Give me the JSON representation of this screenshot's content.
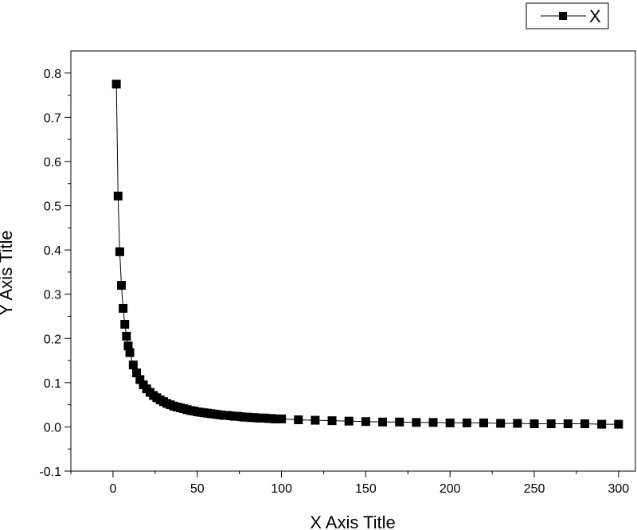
{
  "chart_data": {
    "type": "line",
    "title": "",
    "xlabel": "X Axis Title",
    "ylabel": "Y Axis Title",
    "xlim": [
      -25,
      310
    ],
    "ylim": [
      -0.1,
      0.85
    ],
    "xticks": [
      0,
      50,
      100,
      150,
      200,
      250,
      300
    ],
    "xtick_labels": [
      "0",
      "50",
      "100",
      "150",
      "200",
      "250",
      "300"
    ],
    "yticks": [
      -0.1,
      0.0,
      0.1,
      0.2,
      0.3,
      0.4,
      0.5,
      0.6,
      0.7,
      0.8
    ],
    "ytick_labels": [
      "-0.1",
      "0.0",
      "0.1",
      "0.2",
      "0.3",
      "0.4",
      "0.5",
      "0.6",
      "0.7",
      "0.8"
    ],
    "grid": false,
    "legend_position": "top-right",
    "colors": {
      "series": "#000000"
    },
    "series": [
      {
        "name": "X",
        "marker": "square",
        "x": [
          2,
          3,
          4,
          5,
          6,
          7,
          8,
          9,
          10,
          12,
          14,
          16,
          18,
          20,
          22,
          24,
          26,
          28,
          30,
          32,
          34,
          36,
          38,
          40,
          42,
          44,
          46,
          48,
          50,
          52,
          54,
          56,
          58,
          60,
          62,
          64,
          66,
          68,
          70,
          72,
          74,
          76,
          78,
          80,
          82,
          84,
          86,
          88,
          90,
          92,
          94,
          96,
          98,
          100,
          110,
          120,
          130,
          140,
          150,
          160,
          170,
          180,
          190,
          200,
          210,
          220,
          230,
          240,
          250,
          260,
          270,
          280,
          290,
          300
        ],
        "y": [
          0.775,
          0.522,
          0.396,
          0.32,
          0.268,
          0.232,
          0.205,
          0.183,
          0.168,
          0.14,
          0.122,
          0.107,
          0.095,
          0.086,
          0.078,
          0.071,
          0.066,
          0.061,
          0.057,
          0.053,
          0.05,
          0.047,
          0.045,
          0.043,
          0.041,
          0.039,
          0.037,
          0.036,
          0.034,
          0.033,
          0.032,
          0.031,
          0.03,
          0.029,
          0.028,
          0.027,
          0.026,
          0.026,
          0.025,
          0.024,
          0.024,
          0.023,
          0.022,
          0.022,
          0.021,
          0.021,
          0.02,
          0.02,
          0.02,
          0.019,
          0.019,
          0.018,
          0.018,
          0.018,
          0.016,
          0.015,
          0.014,
          0.013,
          0.012,
          0.011,
          0.011,
          0.01,
          0.01,
          0.009,
          0.009,
          0.009,
          0.008,
          0.008,
          0.007,
          0.007,
          0.007,
          0.007,
          0.006,
          0.006
        ]
      }
    ]
  }
}
